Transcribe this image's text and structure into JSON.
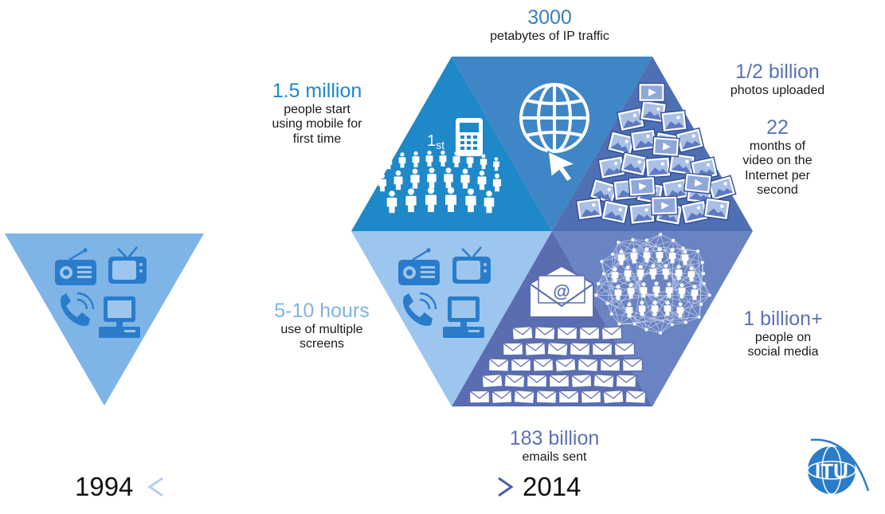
{
  "stats": {
    "ip_traffic": {
      "value": "3000",
      "label": "petabytes of IP traffic"
    },
    "photos": {
      "value": "1/2 billion",
      "label": "photos uploaded"
    },
    "video": {
      "value": "22",
      "label_lines": [
        "months of",
        "video on the",
        "Internet per",
        "second"
      ]
    },
    "mobile": {
      "value": "1.5 million",
      "label_lines": [
        "people start",
        "using mobile for",
        "first time"
      ]
    },
    "screens": {
      "value": "5-10 hours",
      "label_lines": [
        "use of multiple",
        "screens"
      ]
    },
    "social": {
      "value": "1 billion+",
      "label_lines": [
        "people on",
        "social media"
      ]
    },
    "emails": {
      "value": "183 billion",
      "label": "emails sent"
    }
  },
  "badge_1st": {
    "num": "1",
    "suffix": "st"
  },
  "timeline": {
    "start": "1994",
    "end": "2014"
  },
  "logo_text": "ITU",
  "colors": {
    "tri_1994": "#7fb4e6",
    "mobile": "#1e88c9",
    "ip": "#3f86c6",
    "photos": "#4f6fb5",
    "social": "#6a83c2",
    "emails": "#5a6db0",
    "screens": "#9cc6ee",
    "icon_fill": "#2a7ccb"
  },
  "icons": [
    "radio-icon",
    "tv-icon",
    "phone-icon",
    "computer-icon",
    "globe-icon",
    "cursor-icon",
    "mobile-phone-icon",
    "crowd-icon",
    "photo-icon",
    "video-icon",
    "email-icon",
    "network-icon",
    "itu-logo-icon"
  ]
}
